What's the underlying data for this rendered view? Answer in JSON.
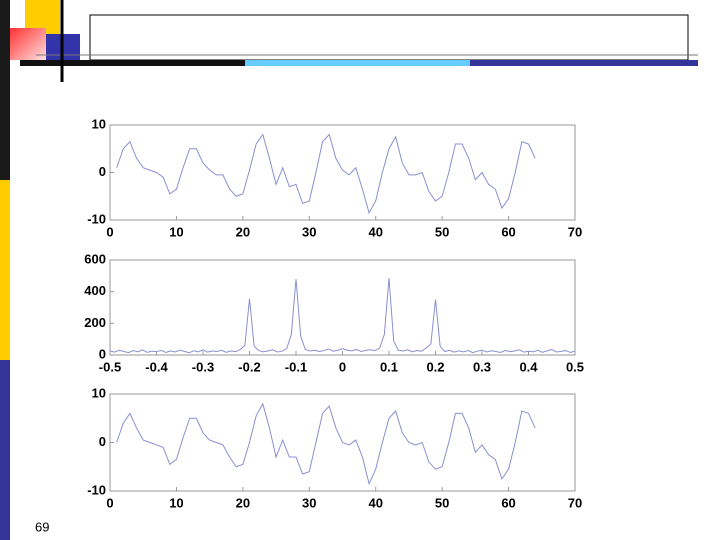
{
  "slide": {
    "page_number": 69
  },
  "chart_data": [
    {
      "type": "line",
      "color": "#8a8fd0",
      "x": [
        1,
        2,
        3,
        4,
        5,
        6,
        7,
        8,
        9,
        10,
        11,
        12,
        13,
        14,
        15,
        16,
        17,
        18,
        19,
        20,
        21,
        22,
        23,
        24,
        25,
        26,
        27,
        28,
        29,
        30,
        31,
        32,
        33,
        34,
        35,
        36,
        37,
        38,
        39,
        40,
        41,
        42,
        43,
        44,
        45,
        46,
        47,
        48,
        49,
        50,
        51,
        52,
        53,
        54,
        55,
        56,
        57,
        58,
        59,
        60,
        61,
        62,
        63,
        64
      ],
      "series": [
        {
          "values": [
            1,
            5,
            6.5,
            3,
            1,
            0.5,
            0,
            -1,
            -4.5,
            -3.5,
            1,
            5,
            5,
            2,
            0.5,
            -0.5,
            -0.5,
            -3.5,
            -5,
            -4.5,
            0.5,
            6,
            8,
            3,
            -2.5,
            1,
            -3,
            -2.5,
            -6.5,
            -6,
            0,
            6.5,
            8,
            3,
            0.5,
            -0.5,
            1,
            -3.5,
            -8.5,
            -6,
            0,
            5,
            7.5,
            2,
            -0.5,
            -0.5,
            0,
            -4,
            -6,
            -5,
            0,
            6,
            6,
            3,
            -1.5,
            0,
            -2.5,
            -3.5,
            -7.5,
            -5.5,
            0,
            6.5,
            6,
            3
          ]
        }
      ],
      "xlim": [
        0,
        70
      ],
      "xticks": [
        0,
        10,
        20,
        30,
        40,
        50,
        60,
        70
      ],
      "ylim": [
        -10,
        10
      ],
      "yticks": [
        -10,
        0,
        10
      ]
    },
    {
      "type": "line",
      "color": "#8a8fd0",
      "x": [
        -0.5,
        -0.49,
        -0.48,
        -0.47,
        -0.46,
        -0.45,
        -0.44,
        -0.43,
        -0.42,
        -0.41,
        -0.4,
        -0.39,
        -0.38,
        -0.37,
        -0.36,
        -0.35,
        -0.34,
        -0.33,
        -0.32,
        -0.31,
        -0.3,
        -0.29,
        -0.28,
        -0.27,
        -0.26,
        -0.25,
        -0.24,
        -0.23,
        -0.22,
        -0.21,
        -0.2,
        -0.19,
        -0.18,
        -0.17,
        -0.16,
        -0.15,
        -0.14,
        -0.13,
        -0.12,
        -0.11,
        -0.1,
        -0.09,
        -0.08,
        -0.07,
        -0.06,
        -0.05,
        -0.04,
        -0.03,
        -0.02,
        -0.01,
        0,
        0.01,
        0.02,
        0.03,
        0.04,
        0.05,
        0.06,
        0.07,
        0.08,
        0.09,
        0.1,
        0.11,
        0.12,
        0.13,
        0.14,
        0.15,
        0.16,
        0.17,
        0.18,
        0.19,
        0.2,
        0.21,
        0.22,
        0.23,
        0.24,
        0.25,
        0.26,
        0.27,
        0.28,
        0.29,
        0.3,
        0.31,
        0.32,
        0.33,
        0.34,
        0.35,
        0.36,
        0.37,
        0.38,
        0.39,
        0.4,
        0.41,
        0.42,
        0.43,
        0.44,
        0.45,
        0.46,
        0.47,
        0.48,
        0.49,
        0.5
      ],
      "series": [
        {
          "values": [
            25,
            18,
            30,
            22,
            15,
            28,
            20,
            33,
            17,
            24,
            21,
            29,
            16,
            26,
            19,
            31,
            23,
            14,
            27,
            20,
            32,
            18,
            25,
            22,
            30,
            17,
            26,
            21,
            35,
            60,
            355,
            55,
            28,
            20,
            26,
            33,
            19,
            24,
            40,
            130,
            480,
            120,
            35,
            25,
            30,
            22,
            28,
            38,
            24,
            30,
            40,
            30,
            26,
            35,
            22,
            29,
            33,
            27,
            45,
            130,
            485,
            90,
            30,
            25,
            33,
            20,
            28,
            24,
            45,
            70,
            350,
            55,
            22,
            30,
            18,
            26,
            20,
            28,
            15,
            24,
            31,
            19,
            27,
            22,
            16,
            29,
            21,
            25,
            33,
            18,
            24,
            20,
            30,
            17,
            26,
            35,
            19,
            23,
            28,
            16,
            25
          ]
        }
      ],
      "xlim": [
        -0.5,
        0.5
      ],
      "xticks": [
        -0.5,
        -0.4,
        -0.3,
        -0.2,
        -0.1,
        0,
        0.1,
        0.2,
        0.3,
        0.4,
        0.5
      ],
      "ylim": [
        0,
        600
      ],
      "yticks": [
        0,
        200,
        400,
        600
      ]
    },
    {
      "type": "line",
      "color": "#8a8fd0",
      "x": [
        1,
        2,
        3,
        4,
        5,
        6,
        7,
        8,
        9,
        10,
        11,
        12,
        13,
        14,
        15,
        16,
        17,
        18,
        19,
        20,
        21,
        22,
        23,
        24,
        25,
        26,
        27,
        28,
        29,
        30,
        31,
        32,
        33,
        34,
        35,
        36,
        37,
        38,
        39,
        40,
        41,
        42,
        43,
        44,
        45,
        46,
        47,
        48,
        49,
        50,
        51,
        52,
        53,
        54,
        55,
        56,
        57,
        58,
        59,
        60,
        61,
        62,
        63,
        64
      ],
      "series": [
        {
          "values": [
            0,
            4,
            6,
            3,
            0.5,
            0,
            -0.5,
            -1,
            -4.5,
            -3.5,
            1,
            5,
            5,
            2,
            0.5,
            0,
            -0.5,
            -3,
            -5,
            -4.5,
            0,
            5.5,
            8,
            3,
            -3,
            0.5,
            -3,
            -3,
            -6.5,
            -6,
            0,
            6,
            7.5,
            3,
            0,
            -0.5,
            0.5,
            -3,
            -8.5,
            -5.5,
            0,
            5,
            6.5,
            2,
            0,
            -0.5,
            0,
            -4,
            -5.5,
            -5,
            0,
            6,
            6,
            3,
            -2,
            -0.5,
            -2.5,
            -3.5,
            -7.5,
            -5.5,
            0,
            6.5,
            6,
            3
          ]
        }
      ],
      "xlim": [
        0,
        70
      ],
      "xticks": [
        0,
        10,
        20,
        30,
        40,
        50,
        60,
        70
      ],
      "ylim": [
        -10,
        10
      ],
      "yticks": [
        -10,
        0,
        10
      ]
    }
  ]
}
